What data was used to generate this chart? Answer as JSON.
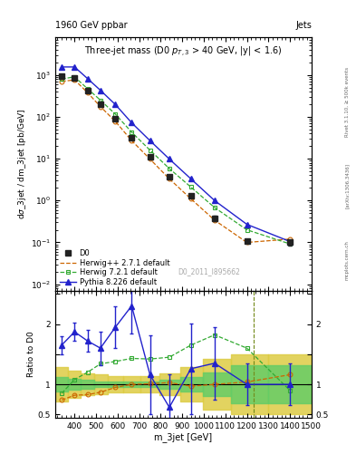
{
  "header_left": "1960 GeV ppbar",
  "header_right": "Jets",
  "title_text": "Three-jet mass (D0 p$_{T,3}$ > 40 GeV, |y| < 1.6)",
  "ylabel_main": "dσ_3jet / dm_3jet [pb/GeV]",
  "ylabel_ratio": "Ratio to D0",
  "xlabel": "m_3jet [GeV]",
  "watermark": "D0_2011_I895662",
  "rivet_text": "Rivet 3.1.10, ≥ 500k events",
  "arxiv_text": "[arXiv:1306.3436]",
  "mcplots_text": "mcplots.cern.ch",
  "d0_x": [
    340,
    400,
    460,
    520,
    590,
    665,
    750,
    840,
    940,
    1050,
    1200,
    1400
  ],
  "d0_y": [
    950,
    830,
    420,
    195,
    88,
    31,
    11,
    3.8,
    1.3,
    0.38,
    0.11,
    0.1
  ],
  "d0_yerr_lo": [
    70,
    55,
    28,
    14,
    6,
    2.2,
    0.8,
    0.3,
    0.12,
    0.05,
    0.012,
    0.015
  ],
  "d0_yerr_hi": [
    70,
    55,
    28,
    14,
    6,
    2.2,
    0.8,
    0.3,
    0.12,
    0.05,
    0.012,
    0.015
  ],
  "herwigpp_x": [
    340,
    400,
    460,
    520,
    590,
    665,
    750,
    840,
    940,
    1050,
    1200,
    1400
  ],
  "herwigpp_y": [
    700,
    760,
    380,
    175,
    77,
    27,
    9.8,
    3.3,
    1.1,
    0.34,
    0.1,
    0.12
  ],
  "herwig721_x": [
    340,
    400,
    460,
    520,
    590,
    665,
    750,
    840,
    940,
    1050,
    1200,
    1400
  ],
  "herwig721_y": [
    800,
    900,
    470,
    250,
    115,
    43,
    16,
    5.8,
    2.1,
    0.68,
    0.2,
    0.092
  ],
  "pythia_x": [
    340,
    400,
    460,
    520,
    590,
    665,
    750,
    840,
    940,
    1050,
    1200,
    1400
  ],
  "pythia_y": [
    1550,
    1550,
    820,
    430,
    195,
    72,
    27,
    9.8,
    3.3,
    1.0,
    0.27,
    0.105
  ],
  "herwigpp_ratio": [
    0.74,
    0.82,
    0.83,
    0.87,
    0.95,
    1.0,
    1.01,
    1.03,
    0.97,
    1.0,
    1.04,
    1.16
  ],
  "herwig721_ratio": [
    0.85,
    1.08,
    1.2,
    1.34,
    1.38,
    1.43,
    1.42,
    1.45,
    1.65,
    1.82,
    1.6,
    0.9
  ],
  "pythia_ratio": [
    1.65,
    1.87,
    1.72,
    1.6,
    1.95,
    2.3,
    1.16,
    0.62,
    1.26,
    1.35,
    1.0,
    1.0
  ],
  "pythia_ratio_err_lo": [
    0.15,
    0.15,
    0.18,
    0.28,
    0.35,
    0.45,
    0.65,
    0.55,
    0.75,
    0.6,
    0.35,
    0.35
  ],
  "pythia_ratio_err_hi": [
    0.15,
    0.15,
    0.18,
    0.28,
    0.35,
    0.45,
    0.65,
    0.55,
    0.75,
    0.6,
    0.35,
    0.35
  ],
  "band_x_edges": [
    310,
    370,
    430,
    490,
    555,
    625,
    705,
    795,
    890,
    995,
    1125,
    1300,
    1500
  ],
  "band_outer_lo": [
    0.72,
    0.78,
    0.82,
    0.84,
    0.86,
    0.86,
    0.86,
    0.82,
    0.72,
    0.58,
    0.5,
    0.5
  ],
  "band_outer_hi": [
    1.28,
    1.22,
    1.18,
    1.16,
    1.14,
    1.14,
    1.14,
    1.18,
    1.28,
    1.42,
    1.5,
    1.5
  ],
  "band_inner_lo": [
    0.88,
    0.91,
    0.93,
    0.95,
    0.96,
    0.96,
    0.96,
    0.93,
    0.88,
    0.8,
    0.68,
    0.68
  ],
  "band_inner_hi": [
    1.12,
    1.09,
    1.07,
    1.05,
    1.04,
    1.04,
    1.04,
    1.07,
    1.12,
    1.2,
    1.32,
    1.32
  ],
  "color_d0": "#222222",
  "color_herwigpp": "#cc6600",
  "color_herwig721": "#33aa33",
  "color_pythia": "#2222cc",
  "color_band_inner": "#66cc66",
  "color_band_outer": "#ddcc44",
  "xlim": [
    310,
    1500
  ],
  "ylim_main": [
    0.007,
    8000
  ],
  "ylim_ratio": [
    0.45,
    2.55
  ],
  "ratio_yticks": [
    0.5,
    1.0,
    1.5,
    2.0,
    2.5
  ]
}
